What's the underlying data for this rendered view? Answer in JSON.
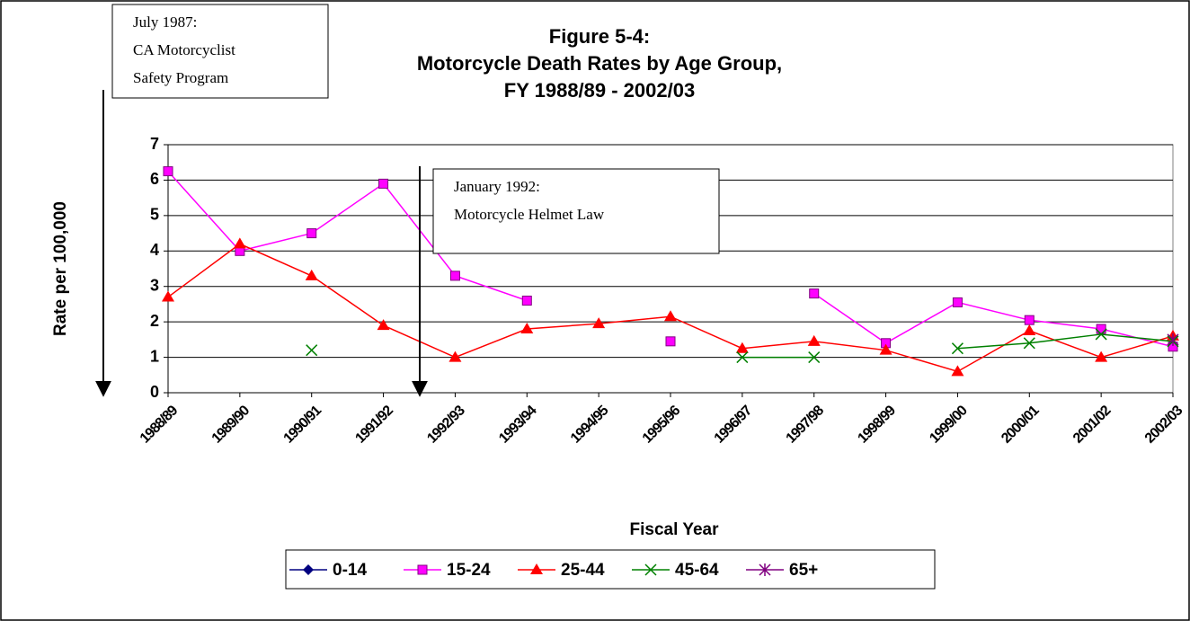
{
  "chart_data": {
    "type": "line",
    "title": [
      "Figure 5-4:",
      "Motorcycle Death Rates by Age Group,",
      "FY 1988/89 - 2002/03"
    ],
    "x_label": "Fiscal Year",
    "y_label": "Rate per 100,000",
    "categories": [
      "1988/89",
      "1989/90",
      "1990/91",
      "1991/92",
      "1992/93",
      "1993/94",
      "1994/95",
      "1995/96",
      "1996/97",
      "1997/98",
      "1998/99",
      "1999/00",
      "2000/01",
      "2001/02",
      "2002/03"
    ],
    "series": [
      {
        "name": "0-14",
        "color": "#000080",
        "marker": "diamond",
        "values": [
          null,
          null,
          null,
          null,
          null,
          null,
          null,
          null,
          null,
          null,
          null,
          null,
          null,
          null,
          null
        ]
      },
      {
        "name": "15-24",
        "color": "#ff00ff",
        "marker": "square",
        "values": [
          6.25,
          4.0,
          4.5,
          5.9,
          3.3,
          2.6,
          null,
          1.45,
          null,
          2.8,
          1.4,
          2.55,
          2.05,
          1.8,
          1.3
        ]
      },
      {
        "name": "25-44",
        "color": "#ff0000",
        "marker": "triangle",
        "values": [
          2.7,
          4.2,
          3.3,
          1.9,
          1.0,
          1.8,
          1.95,
          2.15,
          1.25,
          1.45,
          1.2,
          0.6,
          1.75,
          1.0,
          1.6
        ]
      },
      {
        "name": "45-64",
        "color": "#008000",
        "marker": "x",
        "values": [
          null,
          null,
          1.2,
          null,
          null,
          null,
          null,
          null,
          1.0,
          1.0,
          null,
          1.25,
          1.4,
          1.65,
          1.45
        ]
      },
      {
        "name": "65+",
        "color": "#800080",
        "marker": "star",
        "values": [
          null,
          null,
          null,
          null,
          null,
          null,
          null,
          null,
          null,
          null,
          null,
          null,
          null,
          null,
          1.5
        ]
      }
    ],
    "ylim": [
      0,
      7
    ],
    "yticks": [
      0,
      1,
      2,
      3,
      4,
      5,
      6,
      7
    ],
    "grid": true,
    "annotations": [
      {
        "lines": [
          "July 1987:",
          "CA Motorcyclist",
          "Safety Program"
        ]
      },
      {
        "lines": [
          "January 1992:",
          "Motorcycle Helmet Law"
        ]
      }
    ]
  }
}
